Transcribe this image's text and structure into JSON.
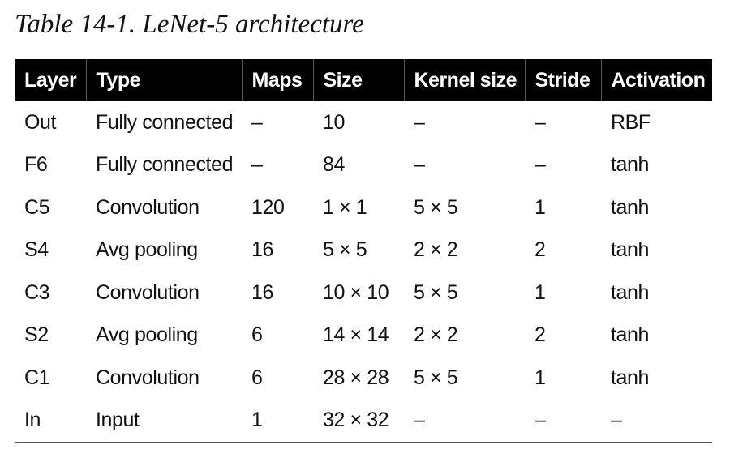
{
  "caption": "Table 14-1. LeNet-5 architecture",
  "table": {
    "headers": [
      "Layer",
      "Type",
      "Maps",
      "Size",
      "Kernel size",
      "Stride",
      "Activation"
    ],
    "rows": [
      [
        "Out",
        "Fully connected",
        "–",
        "10",
        "–",
        "–",
        "RBF"
      ],
      [
        "F6",
        "Fully connected",
        "–",
        "84",
        "–",
        "–",
        "tanh"
      ],
      [
        "C5",
        "Convolution",
        "120",
        "1 × 1",
        "5 × 5",
        "1",
        "tanh"
      ],
      [
        "S4",
        "Avg pooling",
        "16",
        "5 × 5",
        "2 × 2",
        "2",
        "tanh"
      ],
      [
        "C3",
        "Convolution",
        "16",
        "10 × 10",
        "5 × 5",
        "1",
        "tanh"
      ],
      [
        "S2",
        "Avg pooling",
        "6",
        "14 × 14",
        "2 × 2",
        "2",
        "tanh"
      ],
      [
        "C1",
        "Convolution",
        "6",
        "28 × 28",
        "5 × 5",
        "1",
        "tanh"
      ],
      [
        "In",
        "Input",
        "1",
        "32 × 32",
        "–",
        "–",
        "–"
      ]
    ]
  },
  "colors": {
    "header_background": "#000000",
    "header_text": "#ffffff",
    "body_text": "#111111"
  }
}
